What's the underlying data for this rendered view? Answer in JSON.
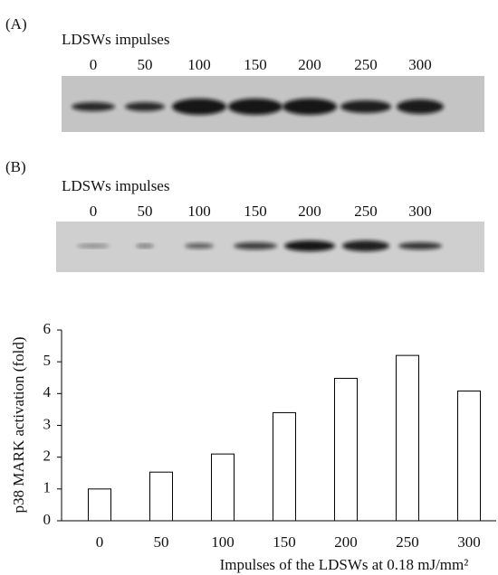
{
  "panels": [
    {
      "label": "(A)",
      "subtitle": "LDSWs impulses",
      "lanes": [
        "0",
        "50",
        "100",
        "150",
        "200",
        "250",
        "300"
      ]
    },
    {
      "label": "(B)",
      "subtitle": "LDSWs impulses",
      "lanes": [
        "0",
        "50",
        "100",
        "150",
        "200",
        "250",
        "300"
      ]
    }
  ],
  "chart_data": {
    "type": "bar",
    "categories": [
      "0",
      "50",
      "100",
      "150",
      "200",
      "250",
      "300"
    ],
    "values": [
      1.0,
      1.53,
      2.1,
      3.4,
      4.48,
      5.2,
      4.08
    ],
    "color": "#ffffff",
    "ylim": [
      0,
      6
    ],
    "yticks": [
      0,
      1,
      2,
      3,
      4,
      5,
      6
    ],
    "ylabel": "p38 MARK activation (fold)",
    "xlabel": "Impulses of the LDSWs at 0.18 mJ/mm²"
  }
}
